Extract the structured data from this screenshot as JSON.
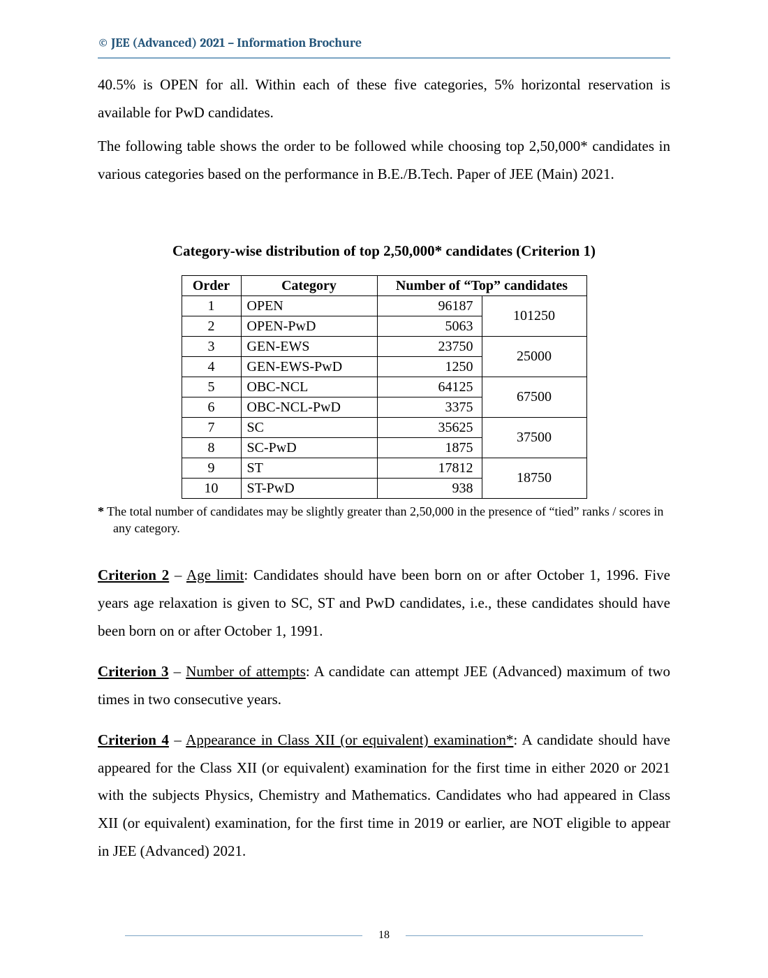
{
  "header": "© JEE (Advanced) 2021 – Information Brochure",
  "intro": {
    "p1": "40.5% is OPEN for all. Within each of these five categories, 5% horizontal reservation is available for PwD candidates.",
    "p2": "The following table shows the order to be followed while choosing top 2,50,000* candidates in various categories based on the performance in B.E./B.Tech. Paper of JEE (Main) 2021."
  },
  "table": {
    "title": "Category-wise distribution of top 2,50,000* candidates (Criterion 1)",
    "headers": {
      "order": "Order",
      "category": "Category",
      "number": "Number of “Top” candidates"
    },
    "groups": [
      {
        "rows": [
          {
            "order": "1",
            "category": "OPEN",
            "num": "96187"
          },
          {
            "order": "2",
            "category": "OPEN-PwD",
            "num": "5063"
          }
        ],
        "total": "101250"
      },
      {
        "rows": [
          {
            "order": "3",
            "category": "GEN-EWS",
            "num": "23750"
          },
          {
            "order": "4",
            "category": "GEN-EWS-PwD",
            "num": "1250"
          }
        ],
        "total": "25000"
      },
      {
        "rows": [
          {
            "order": "5",
            "category": "OBC-NCL",
            "num": "64125"
          },
          {
            "order": "6",
            "category": "OBC-NCL-PwD",
            "num": "3375"
          }
        ],
        "total": "67500"
      },
      {
        "rows": [
          {
            "order": "7",
            "category": "SC",
            "num": "35625"
          },
          {
            "order": "8",
            "category": "SC-PwD",
            "num": "1875"
          }
        ],
        "total": "37500"
      },
      {
        "rows": [
          {
            "order": "9",
            "category": "ST",
            "num": "17812"
          },
          {
            "order": "10",
            "category": "ST-PwD",
            "num": "938"
          }
        ],
        "total": "18750"
      }
    ],
    "footnote_star": "*",
    "footnote": " The total number of candidates may be slightly greater than 2,50,000 in the presence of “tied” ranks / scores in any category."
  },
  "criteria": {
    "c2": {
      "lead": "Criterion 2",
      "sub": "Age limit",
      "body": ": Candidates should have been born on or after October 1, 1996. Five years age relaxation is given to SC, ST and PwD candidates, i.e., these candidates should have been born on or after October 1, 1991."
    },
    "c3": {
      "lead": "Criterion 3",
      "sub": "Number of attempts",
      "body": ": A candidate can attempt JEE (Advanced) maximum of two times in two consecutive years."
    },
    "c4": {
      "lead": "Criterion 4",
      "sub": "Appearance in Class XII (or equivalent) examination*",
      "body": ": A candidate should have appeared for the Class XII (or equivalent) examination for the first time in either 2020 or 2021 with the subjects Physics, Chemistry and Mathematics. Candidates who had appeared in Class XII (or equivalent) examination, for the first time in 2019 or earlier, are NOT eligible to appear in JEE (Advanced) 2021."
    }
  },
  "page_number": "18"
}
